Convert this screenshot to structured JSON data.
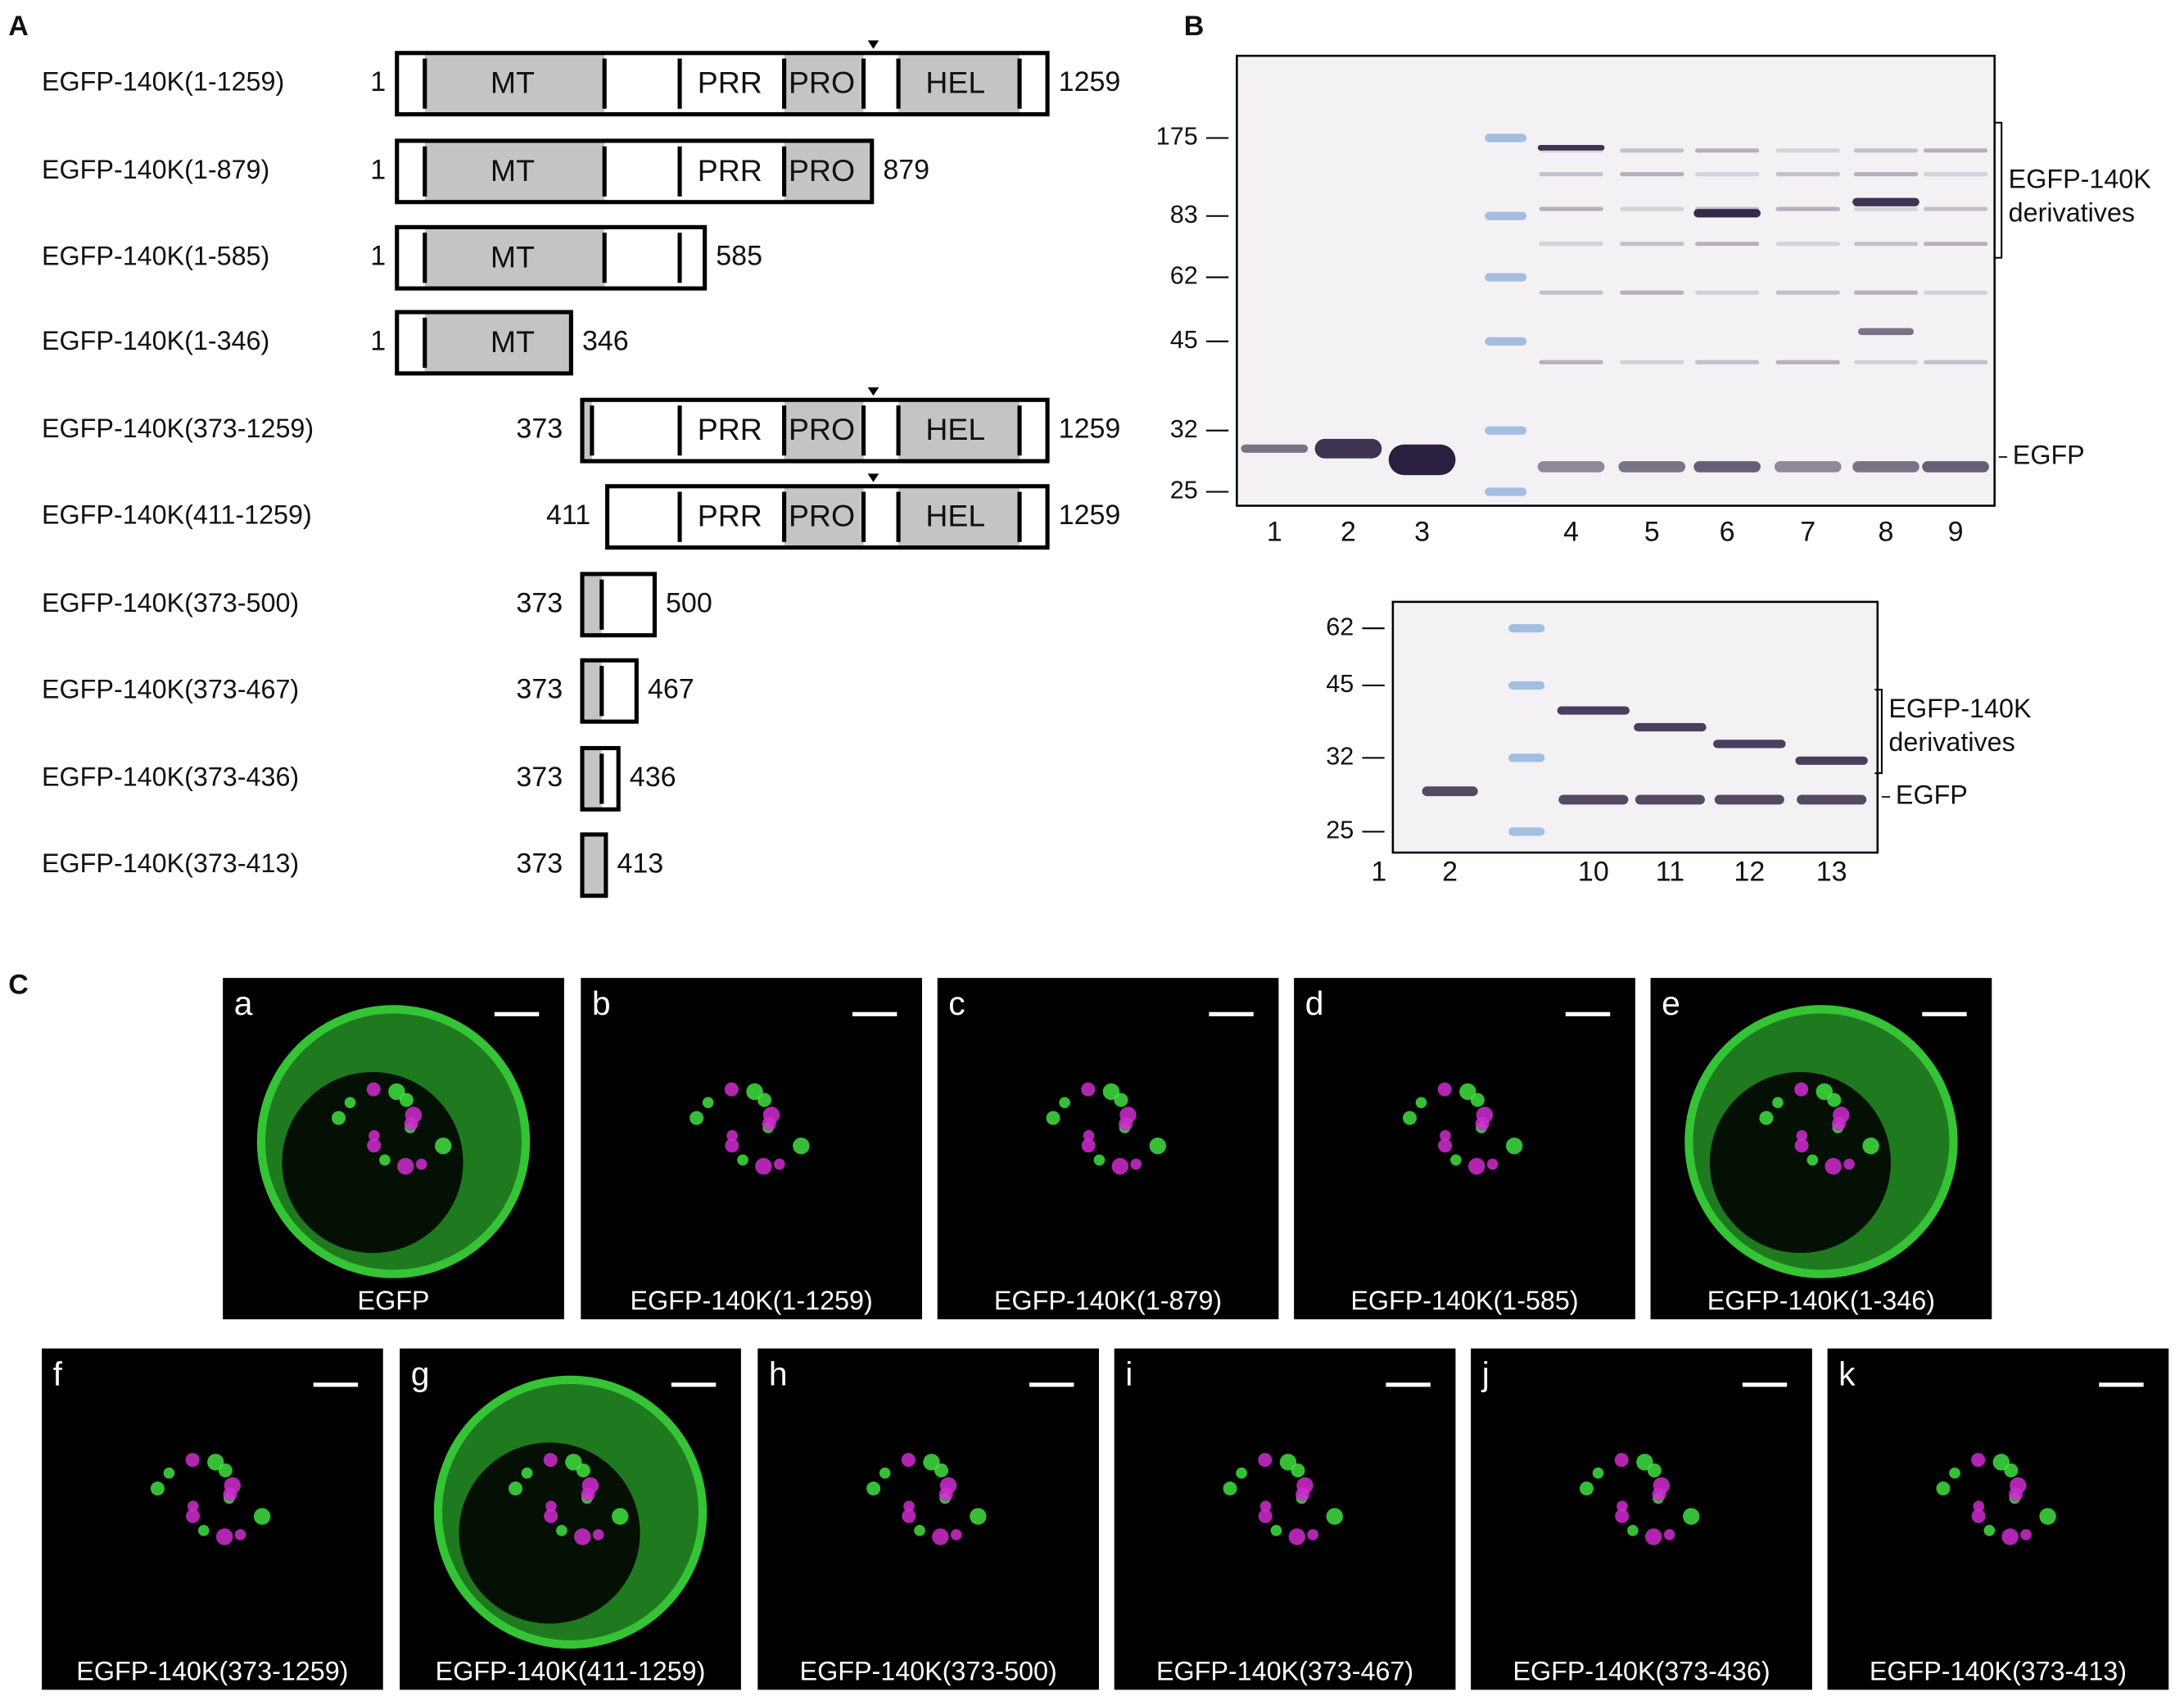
{
  "panel_a": {
    "label": "A",
    "constructs": [
      {
        "name": "EGFP-140K(1-1259)",
        "start": 1,
        "end": 1259,
        "domains": [
          "MT",
          "PRR",
          "PRO",
          "HEL"
        ]
      },
      {
        "name": "EGFP-140K(1-879)",
        "start": 1,
        "end": 879,
        "domains": [
          "MT",
          "PRR",
          "PRO"
        ]
      },
      {
        "name": "EGFP-140K(1-585)",
        "start": 1,
        "end": 585,
        "domains": [
          "MT"
        ]
      },
      {
        "name": "EGFP-140K(1-346)",
        "start": 1,
        "end": 346,
        "domains": [
          "MT"
        ]
      },
      {
        "name": "EGFP-140K(373-1259)",
        "start": 373,
        "end": 1259,
        "domains": [
          "PRR",
          "PRO",
          "HEL"
        ]
      },
      {
        "name": "EGFP-140K(411-1259)",
        "start": 411,
        "end": 1259,
        "domains": [
          "PRR",
          "PRO",
          "HEL"
        ]
      },
      {
        "name": "EGFP-140K(373-500)",
        "start": 373,
        "end": 500,
        "domains": []
      },
      {
        "name": "EGFP-140K(373-467)",
        "start": 373,
        "end": 467,
        "domains": []
      },
      {
        "name": "EGFP-140K(373-436)",
        "start": 373,
        "end": 436,
        "domains": []
      },
      {
        "name": "EGFP-140K(373-413)",
        "start": 373,
        "end": 413,
        "domains": []
      }
    ]
  },
  "panel_b": {
    "label": "B",
    "gel_1": {
      "markers": [
        175,
        83,
        62,
        45,
        32,
        25
      ],
      "lanes": [
        1,
        2,
        3,
        4,
        5,
        6,
        7,
        8,
        9
      ],
      "bracket_label": [
        "EGFP-140K",
        "derivatives"
      ],
      "egfp_label": "EGFP"
    },
    "gel_2": {
      "markers": [
        62,
        45,
        32,
        25
      ],
      "lanes": [
        1,
        2,
        10,
        11,
        12,
        13
      ],
      "bracket_label": [
        "EGFP-140K",
        "derivatives"
      ],
      "egfp_label": "EGFP"
    }
  },
  "panel_c": {
    "label": "C",
    "images": [
      {
        "letter": "a",
        "caption": "EGFP"
      },
      {
        "letter": "b",
        "caption": "EGFP-140K(1-1259)"
      },
      {
        "letter": "c",
        "caption": "EGFP-140K(1-879)"
      },
      {
        "letter": "d",
        "caption": "EGFP-140K(1-585)"
      },
      {
        "letter": "e",
        "caption": "EGFP-140K(1-346)"
      },
      {
        "letter": "f",
        "caption": "EGFP-140K(373-1259)"
      },
      {
        "letter": "g",
        "caption": "EGFP-140K(411-1259)"
      },
      {
        "letter": "h",
        "caption": "EGFP-140K(373-500)"
      },
      {
        "letter": "i",
        "caption": "EGFP-140K(373-467)"
      },
      {
        "letter": "j",
        "caption": "EGFP-140K(373-436)"
      },
      {
        "letter": "k",
        "caption": "EGFP-140K(373-413)"
      }
    ]
  }
}
